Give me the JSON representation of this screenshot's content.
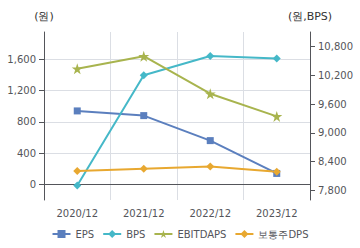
{
  "chart_data": {
    "type": "line",
    "categories": [
      "2020/12",
      "2021/12",
      "2022/12",
      "2023/12"
    ],
    "series": [
      {
        "name": "EPS",
        "color": "#5b7fbe",
        "marker": "square",
        "values": [
          940,
          880,
          560,
          140
        ]
      },
      {
        "name": "BPS",
        "color": "#45b8c8",
        "marker": "diamond",
        "axis": "y2",
        "values": [
          7900,
          10200,
          10600,
          10550
        ]
      },
      {
        "name": "EBITDAPS",
        "color": "#a8b44e",
        "marker": "star",
        "values": [
          1480,
          1640,
          1160,
          870
        ]
      },
      {
        "name": "보통주DPS",
        "color": "#e8a830",
        "marker": "diamond",
        "values": [
          170,
          200,
          230,
          160
        ]
      }
    ],
    "ylabel": "(원)",
    "y2label": "(원,BPS)",
    "ylim": [
      -200,
      1950
    ],
    "yticks": [
      0,
      400,
      800,
      {
        "value": 1200,
        "label": "1,200"
      },
      {
        "value": 1600,
        "label": "1,600"
      }
    ],
    "y2lim": [
      7600,
      11100
    ],
    "y2ticks": [
      {
        "value": 7800,
        "label": "7,800"
      },
      {
        "value": 8400,
        "label": "8,400"
      },
      {
        "value": 9000,
        "label": "9,000"
      },
      {
        "value": 9600,
        "label": "9,600"
      },
      {
        "value": 10200,
        "label": "10,200"
      },
      {
        "value": 10800,
        "label": "10,800"
      }
    ],
    "grid": true,
    "legend": "bottom"
  }
}
